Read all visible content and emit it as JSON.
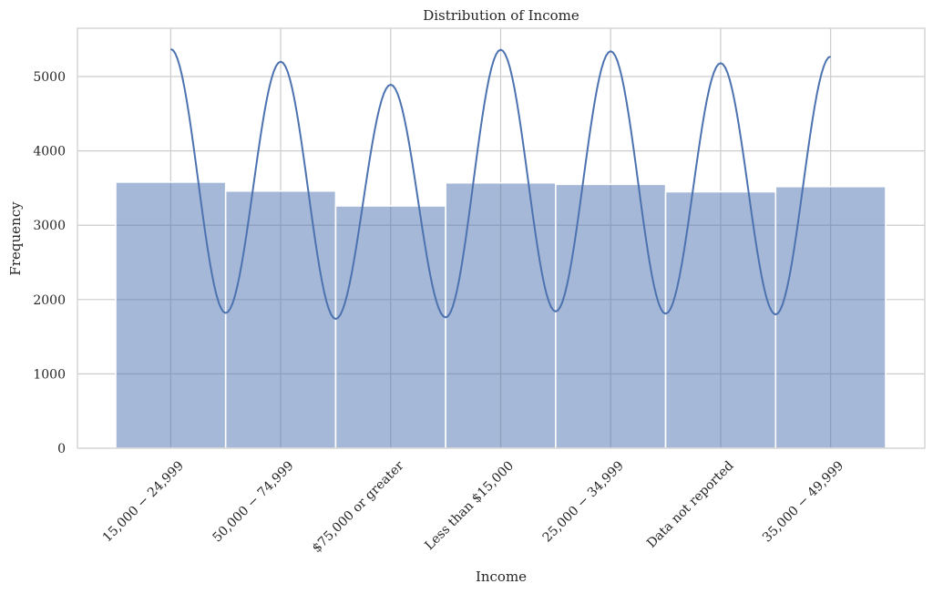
{
  "chart_data": {
    "type": "bar",
    "title": "Distribution of Income",
    "xlabel": "Income",
    "ylabel": "Frequency",
    "categories": [
      "15,000 − 24,999",
      "50,000 − 74,999",
      "$75,000 or greater",
      "Less than $15,000",
      "25,000 − 34,999",
      "Data not reported",
      "35,000 − 49,999"
    ],
    "values": [
      3580,
      3460,
      3260,
      3570,
      3550,
      3450,
      3520
    ],
    "kde_peaks": [
      5370,
      5200,
      4890,
      5360,
      5340,
      5180,
      5270
    ],
    "kde_troughs": [
      1820,
      1740,
      1760,
      1840,
      1810,
      1800
    ],
    "yticks": [
      0,
      1000,
      2000,
      3000,
      4000,
      5000
    ],
    "ylim": [
      0,
      5650
    ],
    "grid": true,
    "bar_color": "#4c72b0",
    "legend": "none"
  }
}
